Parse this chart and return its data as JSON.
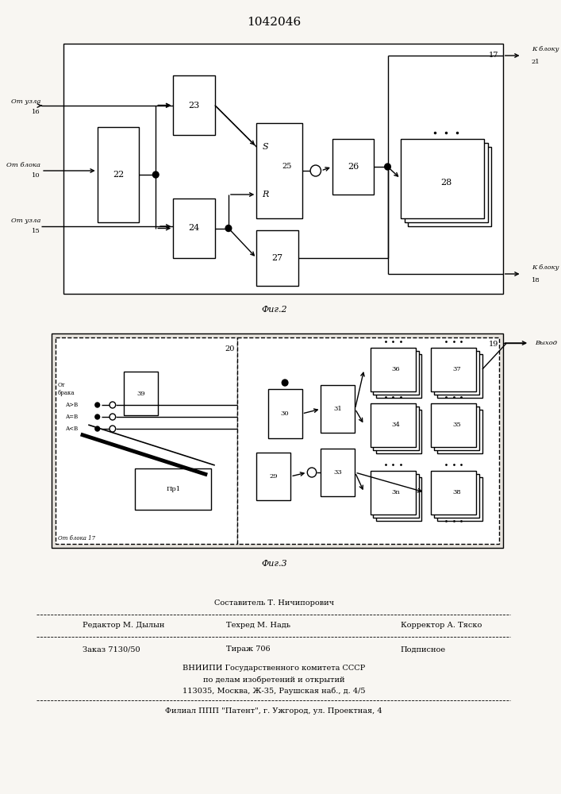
{
  "title": "1042046",
  "bg_color": "#ffffff",
  "fig_bg": "#f8f6f2",
  "footer": {
    "составитель": "Составитель Т. Ничипорович",
    "редактор": "Редактор М. Дылын",
    "техред": "Техред М. Надь",
    "корректор": "Корректор А. Тяско",
    "заказ": "Заказ 7130/50",
    "тираж": "Тираж 706",
    "подписное": "Подписное",
    "вниипи": "ВНИИПИ Государственного комитета СССР",
    "вниипи2": "по делам изобретений и открытий",
    "адрес": "113035, Москва, Ж-35, Раушская наб., д. 4/5",
    "филиал": "Филиал ППП \"Патент\", г. Ужгород, ул. Проектная, 4"
  }
}
